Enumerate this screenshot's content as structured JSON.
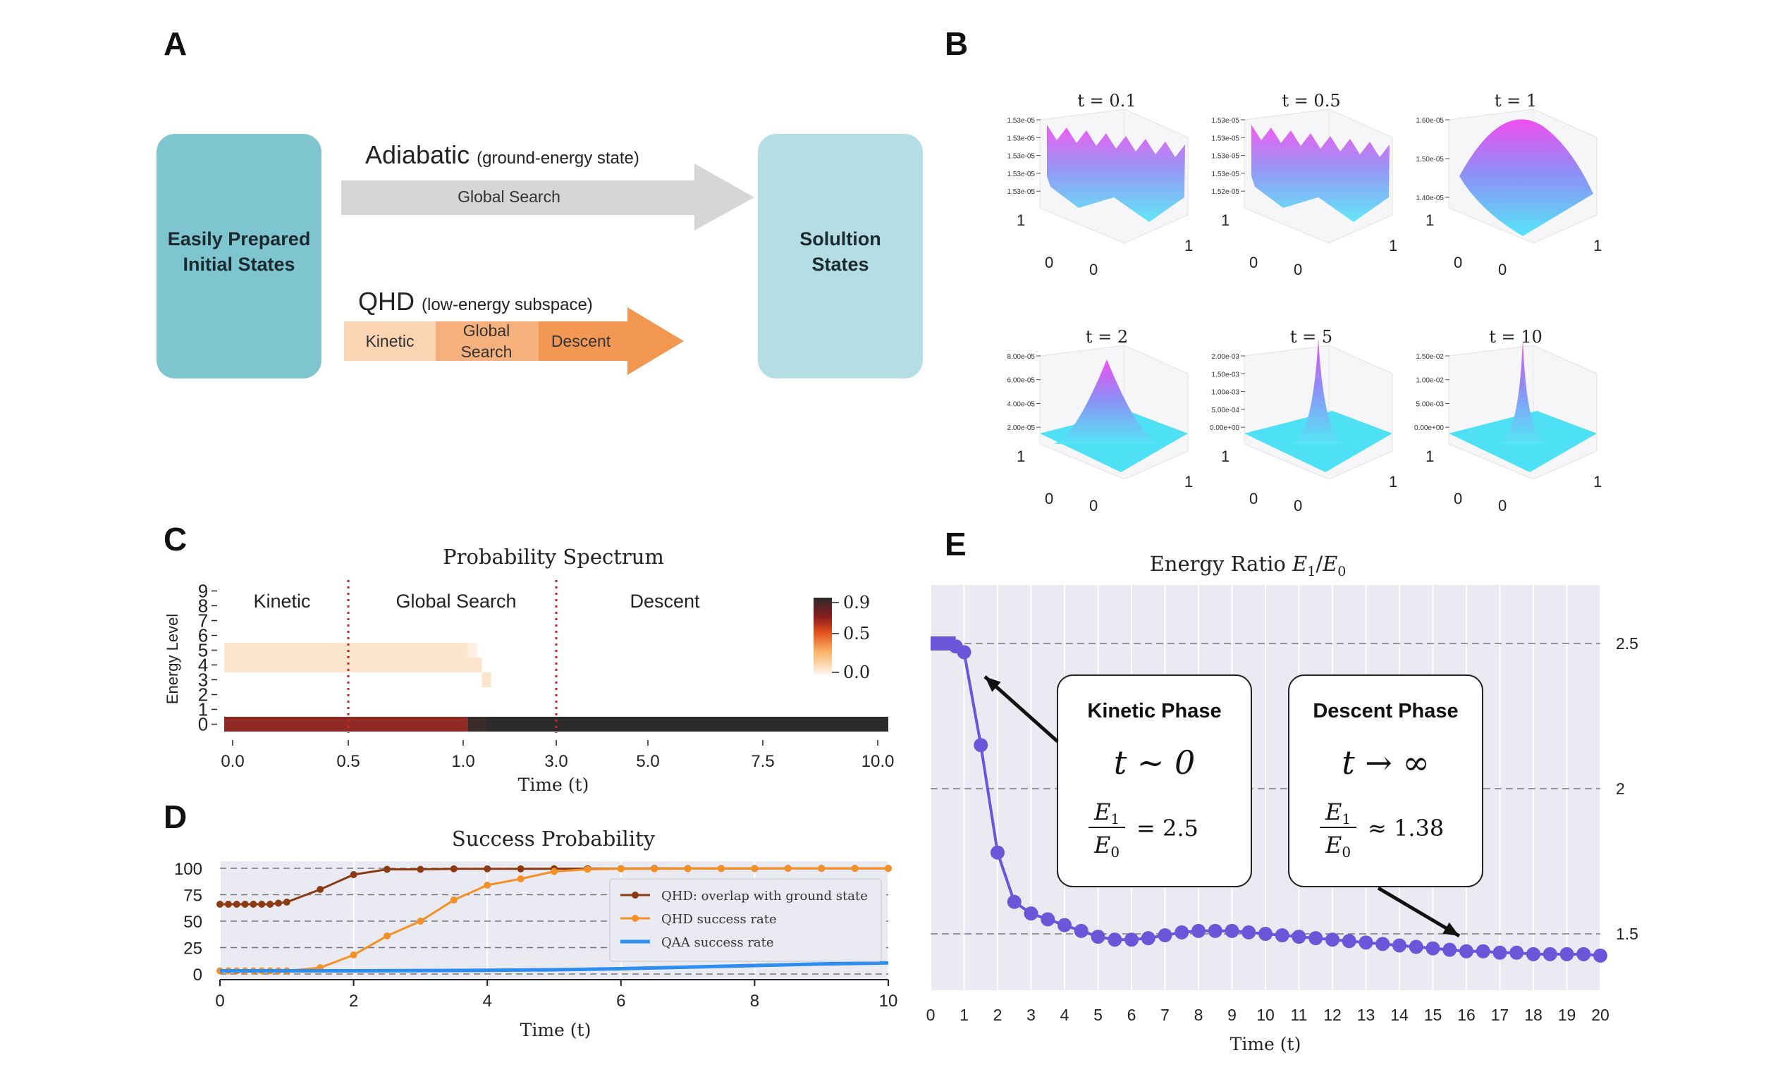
{
  "panel_labels": [
    "A",
    "B",
    "C",
    "D",
    "E"
  ],
  "panel_a": {
    "left_box": "Easily Prepared\nInitial States",
    "right_box": "Solultion\nStates",
    "adiabatic_title": "Adiabatic",
    "adiabatic_sub": "(ground-energy state)",
    "adiabatic_arrow_label": "Global Search",
    "qhd_title": "QHD",
    "qhd_sub": "(low-energy subspace)",
    "qhd_segments": [
      "Kinetic",
      "Global\nSearch",
      "Descent"
    ],
    "colors": {
      "box_left": "#7ec5cf",
      "box_right": "#b4dde4",
      "grey_arrow": "#d6d7d4",
      "seg1": "#fbd4b3",
      "seg2": "#f5b07c",
      "seg3": "#f29854",
      "arrow_head": "#f2974f"
    }
  },
  "panel_b": {
    "subplots": [
      {
        "title": "t = 0.1",
        "zticks": [
          "1.53e-05",
          "1.53e-05",
          "1.53e-05",
          "1.53e-05",
          "1.53e-05"
        ]
      },
      {
        "title": "t = 0.5",
        "zticks": [
          "1.53e-05",
          "1.53e-05",
          "1.53e-05",
          "1.53e-05",
          "1.52e-05"
        ]
      },
      {
        "title": "t = 1",
        "zticks": [
          "1.60e-05",
          "1.50e-05",
          "1.40e-05"
        ]
      },
      {
        "title": "t = 2",
        "zticks": [
          "8.00e-05",
          "6.00e-05",
          "4.00e-05",
          "2.00e-05"
        ]
      },
      {
        "title": "t = 5",
        "zticks": [
          "2.00e-03",
          "1.50e-03",
          "1.00e-03",
          "5.00e-04",
          "0.00e+00"
        ]
      },
      {
        "title": "t = 10",
        "zticks": [
          "1.50e-02",
          "1.00e-02",
          "5.00e-03",
          "0.00e+00"
        ]
      }
    ],
    "axis_labels": [
      "1",
      "0",
      "0",
      "1"
    ]
  },
  "chart_data": [
    {
      "type": "heatmap",
      "title": "Probability Spectrum",
      "xlabel": "Time (t)",
      "ylabel": "Energy Level",
      "x_tick_labels": [
        "0.0",
        "0.5",
        "1.0",
        "3.0",
        "5.0",
        "7.5",
        "10.0"
      ],
      "y_tick_labels": [
        "0",
        "1",
        "2",
        "3",
        "4",
        "5",
        "6",
        "7",
        "8",
        "9"
      ],
      "phase_labels": [
        "Kinetic",
        "Global Search",
        "Descent"
      ],
      "colorbar_ticks": [
        "0.9",
        "0.5",
        "0.0"
      ],
      "phase_boundaries": [
        0.5,
        3.0
      ],
      "rows": [
        {
          "level": 0,
          "cells": [
            [
              0.0,
              1.1,
              0.7
            ],
            [
              1.1,
              1.5,
              0.8
            ],
            [
              1.5,
              10.0,
              0.95
            ]
          ]
        },
        {
          "level": 3,
          "cells": [
            [
              1.4,
              1.6,
              0.1
            ]
          ]
        },
        {
          "level": 4,
          "cells": [
            [
              0.0,
              1.4,
              0.12
            ]
          ]
        },
        {
          "level": 5,
          "cells": [
            [
              0.0,
              1.1,
              0.12
            ],
            [
              1.1,
              1.3,
              0.06
            ]
          ]
        }
      ]
    },
    {
      "type": "line",
      "title": "Success Probability",
      "xlabel": "Time (t)",
      "ylabel": "",
      "xlim": [
        0,
        10
      ],
      "ylim": [
        0,
        100
      ],
      "x_ticks": [
        0,
        2,
        4,
        6,
        8,
        10
      ],
      "y_ticks": [
        0,
        25,
        50,
        75,
        100
      ],
      "legend_position": "center-right",
      "series": [
        {
          "name": "QHD: overlap with ground state",
          "color": "#8b3a12",
          "x": [
            0,
            0.125,
            0.25,
            0.375,
            0.5,
            0.625,
            0.75,
            0.875,
            1,
            1.5,
            2,
            2.5,
            3,
            3.5,
            4,
            4.5,
            5,
            5.5,
            6,
            6.5,
            7,
            7.5,
            8,
            8.5,
            9,
            9.5,
            10
          ],
          "y": [
            66,
            66,
            66,
            66,
            66,
            66,
            66,
            67,
            68,
            80,
            94,
            99,
            99,
            99.5,
            99.5,
            99.5,
            99.6,
            99.7,
            99.7,
            99.8,
            99.8,
            99.8,
            99.8,
            99.9,
            99.9,
            99.9,
            99.9
          ]
        },
        {
          "name": "QHD success rate",
          "color": "#f39126",
          "x": [
            0,
            0.125,
            0.25,
            0.375,
            0.5,
            0.625,
            0.75,
            0.875,
            1,
            1.5,
            2,
            2.5,
            3,
            3.5,
            4,
            4.5,
            5,
            5.5,
            6,
            6.5,
            7,
            7.5,
            8,
            8.5,
            9,
            9.5,
            10
          ],
          "y": [
            3,
            3,
            3,
            3,
            3,
            3,
            3,
            3,
            3,
            6,
            18,
            36,
            50,
            70,
            84,
            90,
            97,
            99,
            99.5,
            99.5,
            99.7,
            99.8,
            99.8,
            99.9,
            99.9,
            99.9,
            99.9
          ]
        },
        {
          "name": "QAA success rate",
          "color": "#2d8df0",
          "x": [
            0,
            2,
            4,
            5,
            6,
            7,
            8,
            9,
            10
          ],
          "y": [
            3,
            3,
            3.5,
            4,
            5,
            6.5,
            8,
            9.5,
            10.5
          ]
        }
      ]
    },
    {
      "type": "line",
      "title": "Energy Ratio E₁/E₀",
      "xlabel": "Time (t)",
      "ylabel": "",
      "xlim": [
        0,
        20
      ],
      "ylim": [
        1.4,
        2.6
      ],
      "x_ticks": [
        0,
        1,
        2,
        3,
        4,
        5,
        6,
        7,
        8,
        9,
        10,
        11,
        12,
        13,
        14,
        15,
        16,
        17,
        18,
        19,
        20
      ],
      "y_ticks": [
        1.5,
        2,
        2.5
      ],
      "series": [
        {
          "name": "",
          "color": "#6956d9",
          "x": [
            0,
            0.25,
            0.5,
            0.75,
            1,
            1.5,
            2,
            2.5,
            3,
            3.5,
            4,
            4.5,
            5,
            5.5,
            6,
            6.5,
            7,
            7.5,
            8,
            8.5,
            9,
            9.5,
            10,
            10.5,
            11,
            11.5,
            12,
            12.5,
            13,
            13.5,
            14,
            14.5,
            15,
            15.5,
            16,
            16.5,
            17,
            17.5,
            18,
            18.5,
            19,
            19.5,
            20
          ],
          "y": [
            2.5,
            2.5,
            2.5,
            2.49,
            2.47,
            2.15,
            1.78,
            1.61,
            1.57,
            1.55,
            1.53,
            1.51,
            1.49,
            1.48,
            1.48,
            1.485,
            1.495,
            1.505,
            1.51,
            1.51,
            1.51,
            1.505,
            1.5,
            1.495,
            1.49,
            1.485,
            1.48,
            1.475,
            1.47,
            1.465,
            1.46,
            1.455,
            1.45,
            1.445,
            1.44,
            1.44,
            1.435,
            1.435,
            1.43,
            1.43,
            1.43,
            1.43,
            1.425
          ]
        }
      ],
      "callouts": [
        {
          "title": "Kinetic Phase",
          "expr": "t ∼ 0",
          "ratio": "= 2.5"
        },
        {
          "title": "Descent Phase",
          "expr": "t → ∞",
          "ratio": "≈ 1.38"
        }
      ]
    }
  ]
}
